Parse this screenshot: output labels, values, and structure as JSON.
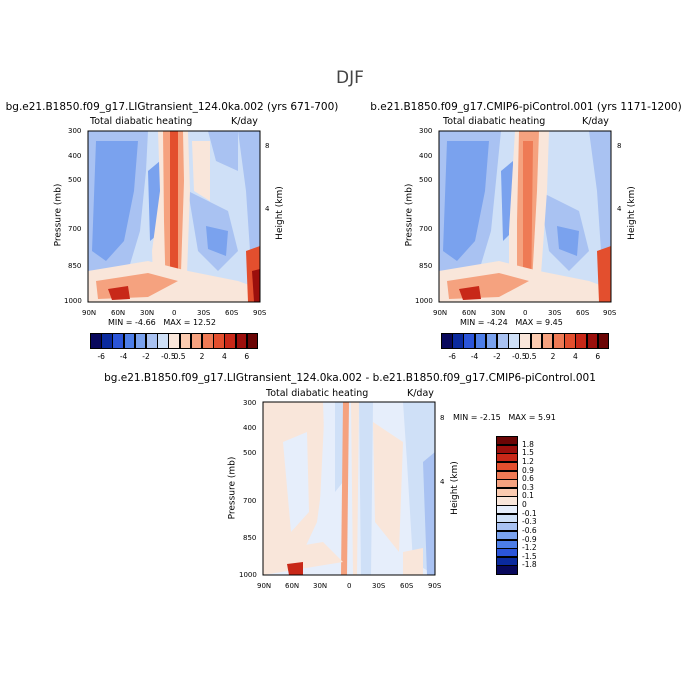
{
  "figure_title": "DJF",
  "chart_data": [
    {
      "type": "heatmap",
      "title": "bg.e21.B1850.f09_g17.LIGtransient_124.0ka.002 (yrs 671-700)",
      "left_label": "Total diabatic heating",
      "right_label": "K/day",
      "xlabel": "",
      "ylabel": "Pressure (mb)",
      "y2label": "Height (km)",
      "xticks": [
        "90N",
        "60N",
        "30N",
        "0",
        "30S",
        "60S",
        "90S"
      ],
      "yticks": [
        "300",
        "400",
        "500",
        "700",
        "850",
        "1000"
      ],
      "y2ticks": [
        "8",
        "4"
      ],
      "xlim": [
        "90N",
        "90S"
      ],
      "ylim": [
        1000,
        300
      ],
      "min_label": "MIN =",
      "min_value": "-4.66",
      "max_label": "MAX =",
      "max_value": "12.52"
    },
    {
      "type": "heatmap",
      "title": "b.e21.B1850.f09_g17.CMIP6-piControl.001 (yrs 1171-1200)",
      "left_label": "Total diabatic heating",
      "right_label": "K/day",
      "xlabel": "",
      "ylabel": "Pressure (mb)",
      "y2label": "Height (km)",
      "xticks": [
        "90N",
        "60N",
        "30N",
        "0",
        "30S",
        "60S",
        "90S"
      ],
      "yticks": [
        "300",
        "400",
        "500",
        "700",
        "850",
        "1000"
      ],
      "y2ticks": [
        "8",
        "4"
      ],
      "xlim": [
        "90N",
        "90S"
      ],
      "ylim": [
        1000,
        300
      ],
      "min_label": "MIN =",
      "min_value": "-4.24",
      "max_label": "MAX =",
      "max_value": "9.45"
    },
    {
      "type": "heatmap",
      "title": "bg.e21.B1850.f09_g17.LIGtransient_124.0ka.002 - b.e21.B1850.f09_g17.CMIP6-piControl.001",
      "left_label": "Total diabatic heating",
      "right_label": "K/day",
      "xlabel": "",
      "ylabel": "Pressure (mb)",
      "y2label": "Height (km)",
      "xticks": [
        "90N",
        "60N",
        "30N",
        "0",
        "30S",
        "60S",
        "90S"
      ],
      "yticks": [
        "300",
        "400",
        "500",
        "700",
        "850",
        "1000"
      ],
      "y2ticks": [
        "8",
        "4"
      ],
      "xlim": [
        "90N",
        "90S"
      ],
      "ylim": [
        1000,
        300
      ],
      "min_label": "MIN =",
      "min_value": "-2.15",
      "max_label": "MAX =",
      "max_value": "5.91"
    }
  ],
  "colorbars": {
    "abs": {
      "labels": [
        "-6",
        "-4",
        "-2",
        "-0.5",
        "0.5",
        "2",
        "4",
        "6"
      ],
      "colors": [
        "#08085c",
        "#0a2a9e",
        "#2b55d9",
        "#4d7ee8",
        "#7aa2ee",
        "#a9c2f2",
        "#cfe0f7",
        "#f9e6da",
        "#fbcbb0",
        "#f5a27f",
        "#ee7a55",
        "#e34f2e",
        "#c82818",
        "#9b0f0c",
        "#6b0505"
      ]
    },
    "diff": {
      "labels": [
        "1.8",
        "1.5",
        "1.2",
        "0.9",
        "0.6",
        "0.3",
        "0.1",
        "0",
        "-0.1",
        "-0.3",
        "-0.6",
        "-0.9",
        "-1.2",
        "-1.5",
        "-1.8"
      ],
      "colors": [
        "#6b0505",
        "#9b0f0c",
        "#c82818",
        "#e34f2e",
        "#ee7a55",
        "#f5a27f",
        "#fbcbb0",
        "#f9e6da",
        "#e6eefb",
        "#cfe0f7",
        "#a9c2f2",
        "#7aa2ee",
        "#4d7ee8",
        "#2b55d9",
        "#0a2a9e",
        "#08085c"
      ]
    }
  }
}
